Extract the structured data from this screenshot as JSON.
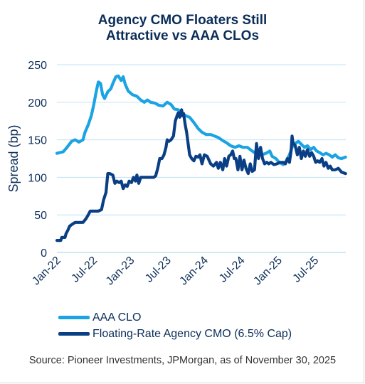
{
  "colors": {
    "aaa_clo": "#1ba3e3",
    "cmo": "#0a3f86",
    "grid": "#bfe3f5",
    "text": "#0b2e59"
  },
  "chart_data": {
    "type": "line",
    "title_lines": [
      "Agency CMO Floaters Still",
      "Attractive vs AAA CLOs"
    ],
    "ylabel": "Spread (bp)",
    "xlabel": "",
    "ylim": [
      0,
      250
    ],
    "yticks": [
      0,
      50,
      100,
      150,
      200,
      250
    ],
    "xlim": [
      "2022-01-01",
      "2025-12-01"
    ],
    "xticks": [
      {
        "date": "2022-01-01",
        "label": "Jan-22"
      },
      {
        "date": "2022-07-01",
        "label": "Jul-22"
      },
      {
        "date": "2023-01-01",
        "label": "Jan-23"
      },
      {
        "date": "2023-07-01",
        "label": "Jul-23"
      },
      {
        "date": "2024-01-01",
        "label": "Jan-24"
      },
      {
        "date": "2024-07-01",
        "label": "Jul-24"
      },
      {
        "date": "2025-01-01",
        "label": "Jan-25"
      },
      {
        "date": "2025-07-01",
        "label": "Jul-25"
      }
    ],
    "grid": true,
    "legend_position": "bottom-left",
    "series": [
      {
        "name": "AAA CLO",
        "color_key": "aaa_clo",
        "points": [
          [
            "2022-01-01",
            132
          ],
          [
            "2022-02-01",
            134
          ],
          [
            "2022-02-20",
            140
          ],
          [
            "2022-03-15",
            148
          ],
          [
            "2022-04-01",
            150
          ],
          [
            "2022-04-20",
            147
          ],
          [
            "2022-05-10",
            150
          ],
          [
            "2022-05-20",
            160
          ],
          [
            "2022-06-05",
            170
          ],
          [
            "2022-06-20",
            182
          ],
          [
            "2022-07-01",
            195
          ],
          [
            "2022-07-15",
            215
          ],
          [
            "2022-07-25",
            227
          ],
          [
            "2022-08-05",
            225
          ],
          [
            "2022-08-15",
            210
          ],
          [
            "2022-08-25",
            205
          ],
          [
            "2022-09-10",
            214
          ],
          [
            "2022-09-25",
            218
          ],
          [
            "2022-10-05",
            225
          ],
          [
            "2022-10-20",
            234
          ],
          [
            "2022-11-01",
            235
          ],
          [
            "2022-11-15",
            229
          ],
          [
            "2022-11-25",
            234
          ],
          [
            "2022-12-05",
            224
          ],
          [
            "2022-12-20",
            215
          ],
          [
            "2023-01-10",
            210
          ],
          [
            "2023-02-01",
            208
          ],
          [
            "2023-02-20",
            203
          ],
          [
            "2023-03-10",
            200
          ],
          [
            "2023-03-25",
            203
          ],
          [
            "2023-04-10",
            200
          ],
          [
            "2023-05-01",
            199
          ],
          [
            "2023-05-20",
            196
          ],
          [
            "2023-06-10",
            195
          ],
          [
            "2023-07-01",
            200
          ],
          [
            "2023-07-20",
            197
          ],
          [
            "2023-08-05",
            191
          ],
          [
            "2023-08-25",
            190
          ],
          [
            "2023-09-15",
            185
          ],
          [
            "2023-10-01",
            182
          ],
          [
            "2023-10-20",
            180
          ],
          [
            "2023-11-10",
            173
          ],
          [
            "2023-12-01",
            165
          ],
          [
            "2023-12-20",
            160
          ],
          [
            "2024-01-10",
            157
          ],
          [
            "2024-02-01",
            157
          ],
          [
            "2024-02-20",
            155
          ],
          [
            "2024-03-10",
            153
          ],
          [
            "2024-04-01",
            149
          ],
          [
            "2024-04-20",
            146
          ],
          [
            "2024-05-10",
            142
          ],
          [
            "2024-06-01",
            140
          ],
          [
            "2024-06-20",
            142
          ],
          [
            "2024-07-10",
            140
          ],
          [
            "2024-08-01",
            140
          ],
          [
            "2024-08-20",
            136
          ],
          [
            "2024-09-10",
            132
          ],
          [
            "2024-09-25",
            137
          ],
          [
            "2024-10-10",
            130
          ],
          [
            "2024-11-01",
            132
          ],
          [
            "2024-11-20",
            135
          ],
          [
            "2024-12-01",
            128
          ],
          [
            "2024-12-20",
            125
          ],
          [
            "2025-01-05",
            120
          ],
          [
            "2025-01-25",
            117
          ],
          [
            "2025-02-10",
            122
          ],
          [
            "2025-02-25",
            130
          ],
          [
            "2025-03-10",
            140
          ],
          [
            "2025-03-25",
            145
          ],
          [
            "2025-04-10",
            148
          ],
          [
            "2025-04-25",
            144
          ],
          [
            "2025-05-10",
            140
          ],
          [
            "2025-05-25",
            142
          ],
          [
            "2025-06-10",
            137
          ],
          [
            "2025-06-25",
            140
          ],
          [
            "2025-07-10",
            135
          ],
          [
            "2025-07-25",
            133
          ],
          [
            "2025-08-10",
            130
          ],
          [
            "2025-08-25",
            132
          ],
          [
            "2025-09-10",
            130
          ],
          [
            "2025-09-25",
            127
          ],
          [
            "2025-10-10",
            130
          ],
          [
            "2025-10-25",
            126
          ],
          [
            "2025-11-10",
            125
          ],
          [
            "2025-11-30",
            127
          ]
        ]
      },
      {
        "name": "Floating-Rate Agency CMO (6.5% Cap)",
        "color_key": "cmo",
        "points": [
          [
            "2022-01-01",
            16
          ],
          [
            "2022-01-20",
            16
          ],
          [
            "2022-01-25",
            20
          ],
          [
            "2022-02-10",
            20
          ],
          [
            "2022-02-15",
            25
          ],
          [
            "2022-02-25",
            30
          ],
          [
            "2022-03-05",
            35
          ],
          [
            "2022-03-20",
            38
          ],
          [
            "2022-04-01",
            40
          ],
          [
            "2022-04-20",
            40
          ],
          [
            "2022-05-10",
            40
          ],
          [
            "2022-05-25",
            45
          ],
          [
            "2022-06-05",
            50
          ],
          [
            "2022-06-15",
            55
          ],
          [
            "2022-07-05",
            55
          ],
          [
            "2022-07-25",
            55
          ],
          [
            "2022-08-10",
            57
          ],
          [
            "2022-08-20",
            70
          ],
          [
            "2022-09-01",
            80
          ],
          [
            "2022-09-10",
            105
          ],
          [
            "2022-09-20",
            105
          ],
          [
            "2022-10-05",
            103
          ],
          [
            "2022-10-15",
            92
          ],
          [
            "2022-10-25",
            95
          ],
          [
            "2022-11-05",
            93
          ],
          [
            "2022-11-15",
            95
          ],
          [
            "2022-11-25",
            85
          ],
          [
            "2022-12-05",
            90
          ],
          [
            "2022-12-15",
            88
          ],
          [
            "2022-12-25",
            95
          ],
          [
            "2023-01-05",
            93
          ],
          [
            "2023-01-15",
            100
          ],
          [
            "2023-01-25",
            95
          ],
          [
            "2023-02-01",
            103
          ],
          [
            "2023-02-10",
            92
          ],
          [
            "2023-02-20",
            100
          ],
          [
            "2023-03-01",
            100
          ],
          [
            "2023-03-20",
            100
          ],
          [
            "2023-04-10",
            100
          ],
          [
            "2023-04-25",
            100
          ],
          [
            "2023-05-05",
            102
          ],
          [
            "2023-05-15",
            112
          ],
          [
            "2023-05-25",
            125
          ],
          [
            "2023-06-05",
            125
          ],
          [
            "2023-06-15",
            130
          ],
          [
            "2023-06-25",
            140
          ],
          [
            "2023-07-01",
            150
          ],
          [
            "2023-07-10",
            148
          ],
          [
            "2023-07-20",
            150
          ],
          [
            "2023-08-01",
            155
          ],
          [
            "2023-08-10",
            175
          ],
          [
            "2023-08-20",
            183
          ],
          [
            "2023-08-25",
            186
          ],
          [
            "2023-09-01",
            180
          ],
          [
            "2023-09-05",
            185
          ],
          [
            "2023-09-10",
            190
          ],
          [
            "2023-09-15",
            182
          ],
          [
            "2023-09-20",
            185
          ],
          [
            "2023-09-28",
            170
          ],
          [
            "2023-10-05",
            160
          ],
          [
            "2023-10-10",
            150
          ],
          [
            "2023-10-20",
            130
          ],
          [
            "2023-10-30",
            125
          ],
          [
            "2023-11-10",
            122
          ],
          [
            "2023-11-20",
            128
          ],
          [
            "2023-12-01",
            127
          ],
          [
            "2023-12-10",
            130
          ],
          [
            "2023-12-20",
            118
          ],
          [
            "2024-01-01",
            130
          ],
          [
            "2024-01-15",
            128
          ],
          [
            "2024-02-01",
            118
          ],
          [
            "2024-02-15",
            115
          ],
          [
            "2024-03-01",
            120
          ],
          [
            "2024-03-10",
            112
          ],
          [
            "2024-03-20",
            120
          ],
          [
            "2024-04-01",
            110
          ],
          [
            "2024-04-10",
            125
          ],
          [
            "2024-04-20",
            115
          ],
          [
            "2024-05-01",
            128
          ],
          [
            "2024-05-10",
            130
          ],
          [
            "2024-05-20",
            135
          ],
          [
            "2024-05-28",
            125
          ],
          [
            "2024-06-05",
            125
          ],
          [
            "2024-06-15",
            110
          ],
          [
            "2024-06-25",
            128
          ],
          [
            "2024-07-05",
            110
          ],
          [
            "2024-07-15",
            123
          ],
          [
            "2024-07-25",
            112
          ],
          [
            "2024-08-05",
            105
          ],
          [
            "2024-08-15",
            118
          ],
          [
            "2024-08-25",
            108
          ],
          [
            "2024-09-05",
            110
          ],
          [
            "2024-09-15",
            145
          ],
          [
            "2024-09-25",
            125
          ],
          [
            "2024-10-05",
            140
          ],
          [
            "2024-10-15",
            125
          ],
          [
            "2024-10-25",
            118
          ],
          [
            "2024-11-05",
            120
          ],
          [
            "2024-11-15",
            118
          ],
          [
            "2024-11-25",
            120
          ],
          [
            "2024-12-10",
            117
          ],
          [
            "2024-12-25",
            118
          ],
          [
            "2025-01-10",
            120
          ],
          [
            "2025-01-25",
            120
          ],
          [
            "2025-02-05",
            118
          ],
          [
            "2025-02-15",
            125
          ],
          [
            "2025-02-25",
            120
          ],
          [
            "2025-03-05",
            135
          ],
          [
            "2025-03-10",
            155
          ],
          [
            "2025-03-15",
            145
          ],
          [
            "2025-03-25",
            143
          ],
          [
            "2025-04-05",
            130
          ],
          [
            "2025-04-15",
            140
          ],
          [
            "2025-04-25",
            125
          ],
          [
            "2025-05-05",
            135
          ],
          [
            "2025-05-15",
            128
          ],
          [
            "2025-05-25",
            137
          ],
          [
            "2025-06-05",
            128
          ],
          [
            "2025-06-15",
            133
          ],
          [
            "2025-06-25",
            128
          ],
          [
            "2025-07-05",
            120
          ],
          [
            "2025-07-15",
            122
          ],
          [
            "2025-07-25",
            120
          ],
          [
            "2025-08-05",
            125
          ],
          [
            "2025-08-15",
            115
          ],
          [
            "2025-08-25",
            120
          ],
          [
            "2025-09-05",
            112
          ],
          [
            "2025-09-15",
            115
          ],
          [
            "2025-09-25",
            110
          ],
          [
            "2025-10-10",
            110
          ],
          [
            "2025-10-25",
            112
          ],
          [
            "2025-11-10",
            107
          ],
          [
            "2025-11-30",
            105
          ]
        ]
      }
    ]
  },
  "source_text": "Source: Pioneer Investments, JPMorgan, as of November 30, 2025"
}
